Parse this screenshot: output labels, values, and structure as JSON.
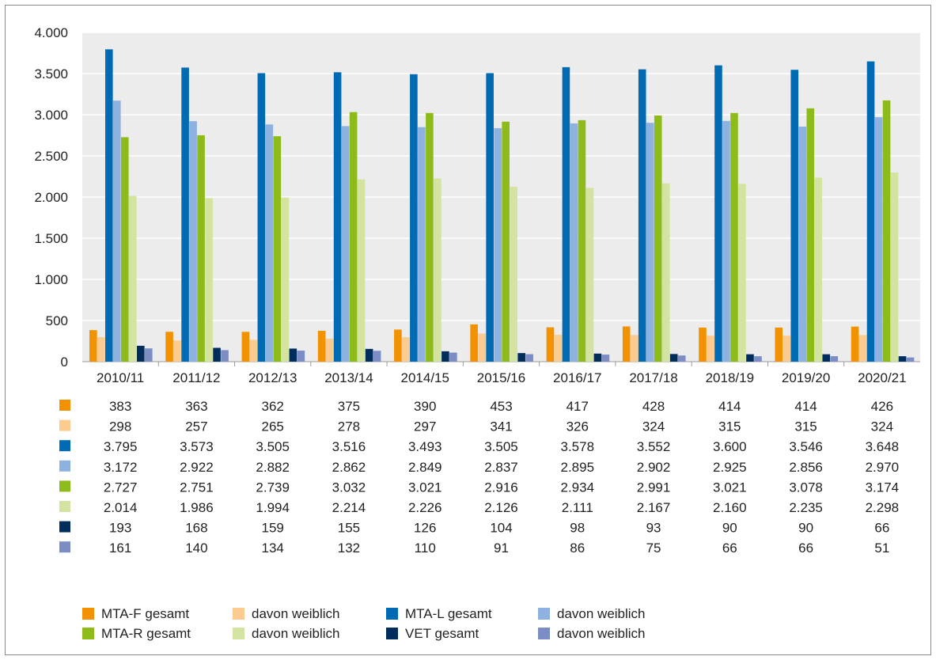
{
  "chart_data": {
    "type": "bar",
    "categories": [
      "2010/11",
      "2011/12",
      "2012/13",
      "2013/14",
      "2014/15",
      "2015/16",
      "2016/17",
      "2017/18",
      "2018/19",
      "2019/20",
      "2020/21"
    ],
    "ylim": [
      0,
      4000
    ],
    "yticks": [
      0,
      500,
      1000,
      1500,
      2000,
      2500,
      3000,
      3500,
      4000
    ],
    "ytick_labels": [
      "0",
      "500",
      "1.000",
      "1.500",
      "2.000",
      "2.500",
      "3.000",
      "3.500",
      "4.000"
    ],
    "grid": true,
    "legend_position": "bottom",
    "series": [
      {
        "name": "MTA-F gesamt",
        "color": "#f39200",
        "values": [
          383,
          363,
          362,
          375,
          390,
          453,
          417,
          428,
          414,
          414,
          426
        ],
        "labels": [
          "383",
          "363",
          "362",
          "375",
          "390",
          "453",
          "417",
          "428",
          "414",
          "414",
          "426"
        ]
      },
      {
        "name": "davon weiblich",
        "color": "#fbcb8f",
        "values": [
          298,
          257,
          265,
          278,
          297,
          341,
          326,
          324,
          315,
          315,
          324
        ],
        "labels": [
          "298",
          "257",
          "265",
          "278",
          "297",
          "341",
          "326",
          "324",
          "315",
          "315",
          "324"
        ]
      },
      {
        "name": "MTA-L gesamt",
        "color": "#006ab3",
        "values": [
          3795,
          3573,
          3505,
          3516,
          3493,
          3505,
          3578,
          3552,
          3600,
          3546,
          3648
        ],
        "labels": [
          "3.795",
          "3.573",
          "3.505",
          "3.516",
          "3.493",
          "3.505",
          "3.578",
          "3.552",
          "3.600",
          "3.546",
          "3.648"
        ]
      },
      {
        "name": "davon weiblich",
        "color": "#8eb2e0",
        "values": [
          3172,
          2922,
          2882,
          2862,
          2849,
          2837,
          2895,
          2902,
          2925,
          2856,
          2970
        ],
        "labels": [
          "3.172",
          "2.922",
          "2.882",
          "2.862",
          "2.849",
          "2.837",
          "2.895",
          "2.902",
          "2.925",
          "2.856",
          "2.970"
        ]
      },
      {
        "name": "MTA-R gesamt",
        "color": "#8dbb1a",
        "values": [
          2727,
          2751,
          2739,
          3032,
          3021,
          2916,
          2934,
          2991,
          3021,
          3078,
          3174
        ],
        "labels": [
          "2.727",
          "2.751",
          "2.739",
          "3.032",
          "3.021",
          "2.916",
          "2.934",
          "2.991",
          "3.021",
          "3.078",
          "3.174"
        ]
      },
      {
        "name": "davon weiblich",
        "color": "#d2e4a0",
        "values": [
          2014,
          1986,
          1994,
          2214,
          2226,
          2126,
          2111,
          2167,
          2160,
          2235,
          2298
        ],
        "labels": [
          "2.014",
          "1.986",
          "1.994",
          "2.214",
          "2.226",
          "2.126",
          "2.111",
          "2.167",
          "2.160",
          "2.235",
          "2.298"
        ]
      },
      {
        "name": "VET gesamt",
        "color": "#002d5c",
        "values": [
          193,
          168,
          159,
          155,
          126,
          104,
          98,
          93,
          90,
          90,
          66
        ],
        "labels": [
          "193",
          "168",
          "159",
          "155",
          "126",
          "104",
          "98",
          "93",
          "90",
          "90",
          "66"
        ]
      },
      {
        "name": "davon weiblich",
        "color": "#7c8cc4",
        "values": [
          161,
          140,
          134,
          132,
          110,
          91,
          86,
          75,
          66,
          66,
          51
        ],
        "labels": [
          "161",
          "140",
          "134",
          "132",
          "110",
          "91",
          "86",
          "75",
          "66",
          "66",
          "51"
        ]
      }
    ],
    "legend_order": [
      0,
      1,
      2,
      3,
      4,
      5,
      6,
      7
    ]
  }
}
